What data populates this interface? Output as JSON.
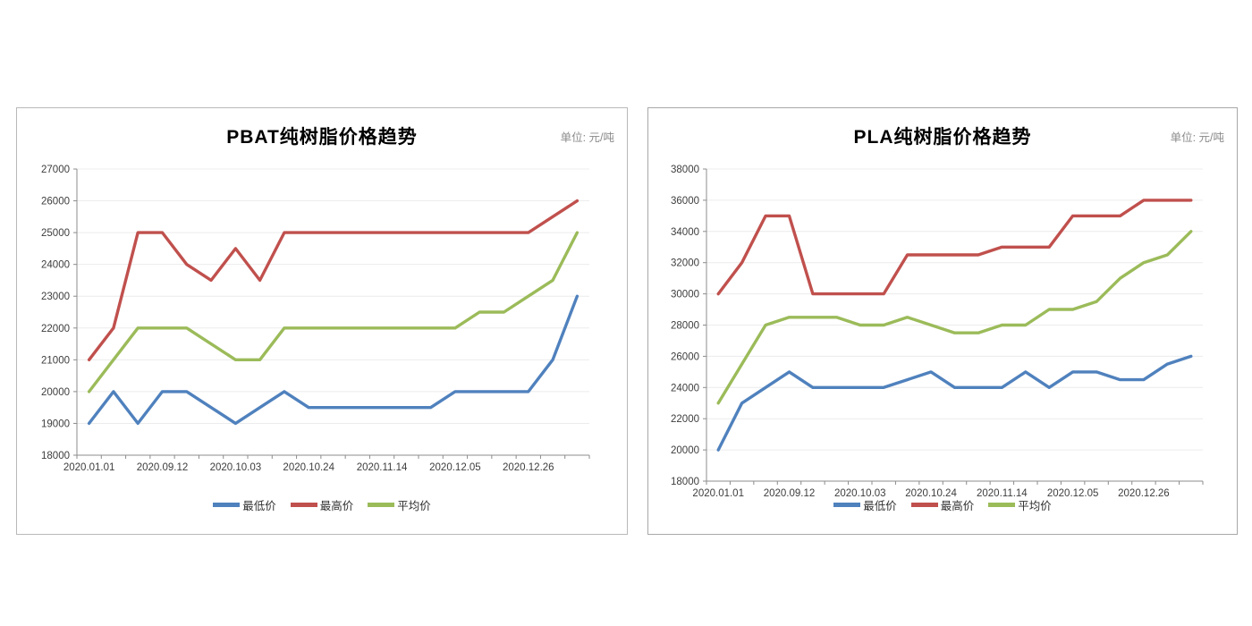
{
  "page": {
    "background": "#ffffff"
  },
  "chart_data": [
    {
      "type": "line",
      "title": "PBAT纯树脂价格趋势",
      "unit_label": "单位: 元/吨",
      "categories_labeled": [
        "2020.01.01",
        "2020.09.12",
        "2020.10.03",
        "2020.10.24",
        "2020.11.14",
        "2020.12.05",
        "2020.12.26"
      ],
      "x_label_every": 3,
      "num_points": 21,
      "ylim": [
        18000,
        27000
      ],
      "y_step": 1000,
      "grid": "horizontal",
      "legend_position": "bottom",
      "series": [
        {
          "name": "最低价",
          "color": "#4F81BD",
          "values": [
            19000,
            20000,
            19000,
            20000,
            20000,
            19500,
            19000,
            19500,
            20000,
            19500,
            19500,
            19500,
            19500,
            19500,
            19500,
            20000,
            20000,
            20000,
            20000,
            21000,
            23000
          ]
        },
        {
          "name": "最高价",
          "color": "#C0504D",
          "values": [
            21000,
            22000,
            25000,
            25000,
            24000,
            23500,
            24500,
            23500,
            25000,
            25000,
            25000,
            25000,
            25000,
            25000,
            25000,
            25000,
            25000,
            25000,
            25000,
            25500,
            26000
          ]
        },
        {
          "name": "平均价",
          "color": "#9BBB59",
          "values": [
            20000,
            21000,
            22000,
            22000,
            22000,
            21500,
            21000,
            21000,
            22000,
            22000,
            22000,
            22000,
            22000,
            22000,
            22000,
            22000,
            22500,
            22500,
            23000,
            23500,
            25000
          ]
        }
      ]
    },
    {
      "type": "line",
      "title": "PLA纯树脂价格趋势",
      "unit_label": "单位: 元/吨",
      "categories_labeled": [
        "2020.01.01",
        "2020.09.12",
        "2020.10.03",
        "2020.10.24",
        "2020.11.14",
        "2020.12.05",
        "2020.12.26"
      ],
      "x_label_every": 3,
      "num_points": 21,
      "ylim": [
        18000,
        38000
      ],
      "y_step": 2000,
      "grid": "horizontal",
      "legend_position": "bottom",
      "series": [
        {
          "name": "最低价",
          "color": "#4F81BD",
          "values": [
            20000,
            23000,
            24000,
            25000,
            24000,
            24000,
            24000,
            24000,
            24500,
            25000,
            24000,
            24000,
            24000,
            25000,
            24000,
            25000,
            25000,
            24500,
            24500,
            25500,
            26000
          ]
        },
        {
          "name": "最高价",
          "color": "#C0504D",
          "values": [
            30000,
            32000,
            35000,
            35000,
            30000,
            30000,
            30000,
            30000,
            32500,
            32500,
            32500,
            32500,
            33000,
            33000,
            33000,
            35000,
            35000,
            35000,
            36000,
            36000,
            36000
          ]
        },
        {
          "name": "平均价",
          "color": "#9BBB59",
          "values": [
            23000,
            25500,
            28000,
            28500,
            28500,
            28500,
            28000,
            28000,
            28500,
            28000,
            27500,
            27500,
            28000,
            28000,
            29000,
            29000,
            29500,
            31000,
            32000,
            32500,
            34000
          ]
        }
      ]
    }
  ],
  "style": {
    "axis_color": "#8c8c8c",
    "grid_color": "#ececec",
    "tick_text_color": "#3d3d3d",
    "line_width": 3.4
  }
}
